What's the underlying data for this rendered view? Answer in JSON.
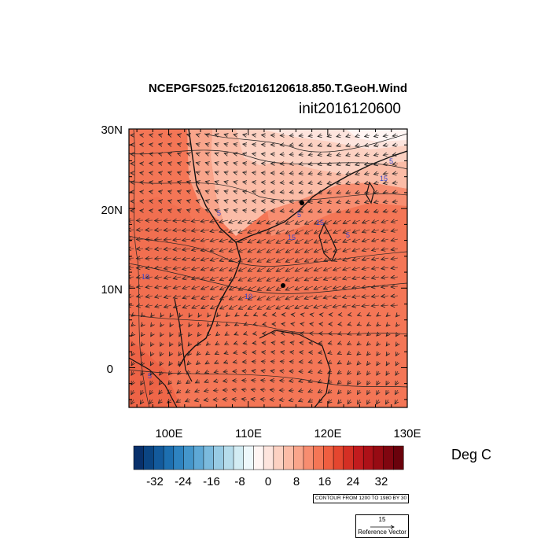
{
  "title": "NCEPGFS025.fct2016120618.850.T.GeoH.Wind",
  "subtitle": "init2016120600",
  "map": {
    "lat_ticks": [
      "30N",
      "20N",
      "10N",
      "0"
    ],
    "lon_ticks": [
      "100E",
      "110E",
      "120E",
      "130E"
    ],
    "extent": {
      "lon_min": 95,
      "lon_max": 130,
      "lat_min": -5,
      "lat_max": 30
    },
    "contour_labels": [
      "5",
      "5",
      "15",
      "15",
      "15",
      "5",
      "10",
      "10",
      "5",
      "5"
    ]
  },
  "colorbar": {
    "labels": [
      "-32",
      "-24",
      "-16",
      "-8",
      "0",
      "8",
      "16",
      "24",
      "32"
    ],
    "units": "Deg C",
    "colors": [
      "#08306b",
      "#0b4583",
      "#135a9c",
      "#1d6fb0",
      "#2e83c0",
      "#4496cb",
      "#5ea8d5",
      "#7bbadd",
      "#98cbe4",
      "#b6dceb",
      "#d3ecf3",
      "#eef8fb",
      "#fff5f3",
      "#fde4dd",
      "#fcd1c2",
      "#fbbca7",
      "#f9a58b",
      "#f78d70",
      "#f47656",
      "#ef5e40",
      "#e4462f",
      "#d42f24",
      "#c21b1e",
      "#ad1118",
      "#970b13",
      "#800610",
      "#6a020c"
    ]
  },
  "contour_info": "CONTOUR FROM 1200 TO 1980 BY 30",
  "reference_vector": {
    "value": "15",
    "label": "Reference Vector"
  }
}
